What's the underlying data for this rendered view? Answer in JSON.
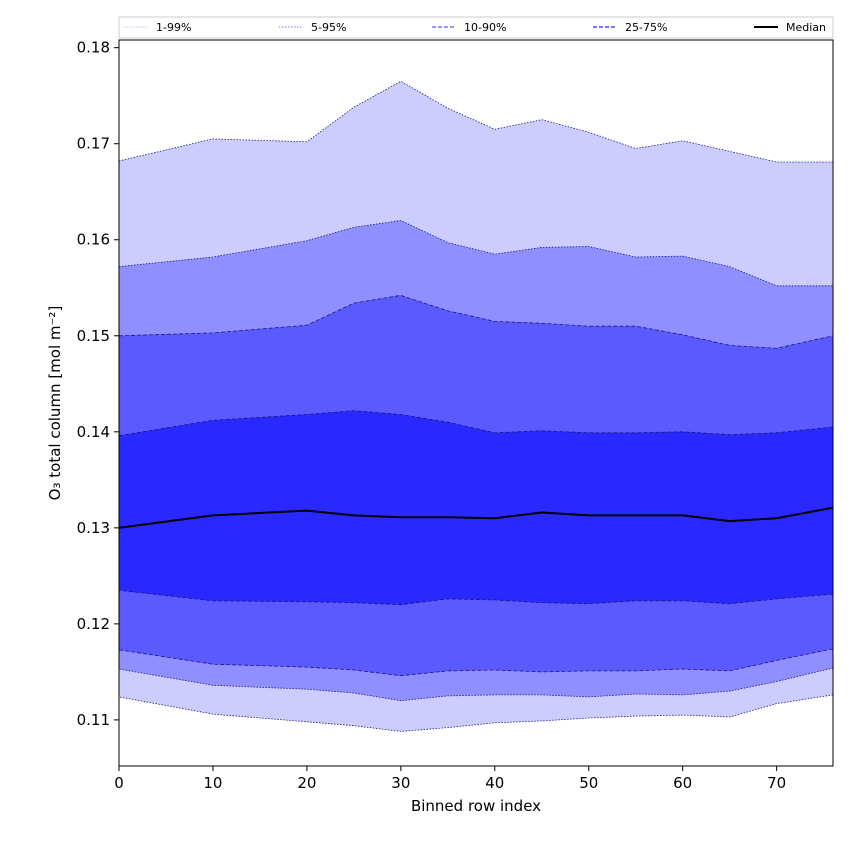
{
  "chart_data": {
    "type": "area",
    "xlabel": "Binned row index",
    "ylabel": "O₃ total column [mol m⁻²]",
    "xlim": [
      0,
      76
    ],
    "ylim": [
      0.1052,
      0.1808
    ],
    "xticks": [
      0,
      10,
      20,
      30,
      40,
      50,
      60,
      70
    ],
    "yticks": [
      0.11,
      0.12,
      0.13,
      0.14,
      0.15,
      0.16,
      0.17,
      0.18
    ],
    "legend_position": "top",
    "x": [
      0,
      10,
      20,
      25,
      30,
      35,
      40,
      45,
      50,
      55,
      60,
      65,
      70,
      76
    ],
    "series": [
      {
        "name": "1-99%",
        "color": "#ccccff",
        "line_style": "dotted",
        "lower": [
          0.1124,
          0.1106,
          0.1098,
          0.1094,
          0.1088,
          0.1092,
          0.1097,
          0.1099,
          0.1102,
          0.1104,
          0.1105,
          0.1103,
          0.1117,
          0.1126
        ],
        "upper": [
          0.1682,
          0.1705,
          0.1702,
          0.1738,
          0.1765,
          0.1737,
          0.1715,
          0.1725,
          0.1712,
          0.1695,
          0.1703,
          0.1692,
          0.1681,
          0.1681
        ]
      },
      {
        "name": "5-95%",
        "color": "#8f8fff",
        "line_style": "dotted",
        "lower": [
          0.1153,
          0.1136,
          0.1132,
          0.1128,
          0.112,
          0.1125,
          0.1126,
          0.1126,
          0.1124,
          0.1127,
          0.1126,
          0.113,
          0.114,
          0.1154
        ],
        "upper": [
          0.1572,
          0.1582,
          0.1599,
          0.1613,
          0.162,
          0.1597,
          0.1585,
          0.1592,
          0.1593,
          0.1582,
          0.1583,
          0.1572,
          0.1552,
          0.1552
        ]
      },
      {
        "name": "10-90%",
        "color": "#5a5aff",
        "line_style": "dashed",
        "lower": [
          0.1173,
          0.1158,
          0.1155,
          0.1152,
          0.1146,
          0.1151,
          0.1152,
          0.115,
          0.1151,
          0.1151,
          0.1153,
          0.1151,
          0.1162,
          0.1174
        ],
        "upper": [
          0.15,
          0.1503,
          0.1511,
          0.1534,
          0.1542,
          0.1526,
          0.1515,
          0.1513,
          0.151,
          0.151,
          0.1501,
          0.149,
          0.1487,
          0.15
        ]
      },
      {
        "name": "25-75%",
        "color": "#2828ff",
        "line_style": "dashed",
        "lower": [
          0.1235,
          0.1224,
          0.1223,
          0.1222,
          0.122,
          0.1226,
          0.1225,
          0.1222,
          0.1221,
          0.1224,
          0.1224,
          0.1221,
          0.1226,
          0.1231
        ],
        "upper": [
          0.1396,
          0.1412,
          0.1418,
          0.1422,
          0.1418,
          0.141,
          0.1399,
          0.1401,
          0.1399,
          0.1399,
          0.14,
          0.1397,
          0.1399,
          0.1405
        ]
      }
    ],
    "median": {
      "name": "Median",
      "color": "#000000",
      "values": [
        0.13,
        0.1313,
        0.1318,
        0.1313,
        0.1311,
        0.1311,
        0.131,
        0.1316,
        0.1313,
        0.1313,
        0.1313,
        0.1307,
        0.131,
        0.1321
      ]
    }
  }
}
